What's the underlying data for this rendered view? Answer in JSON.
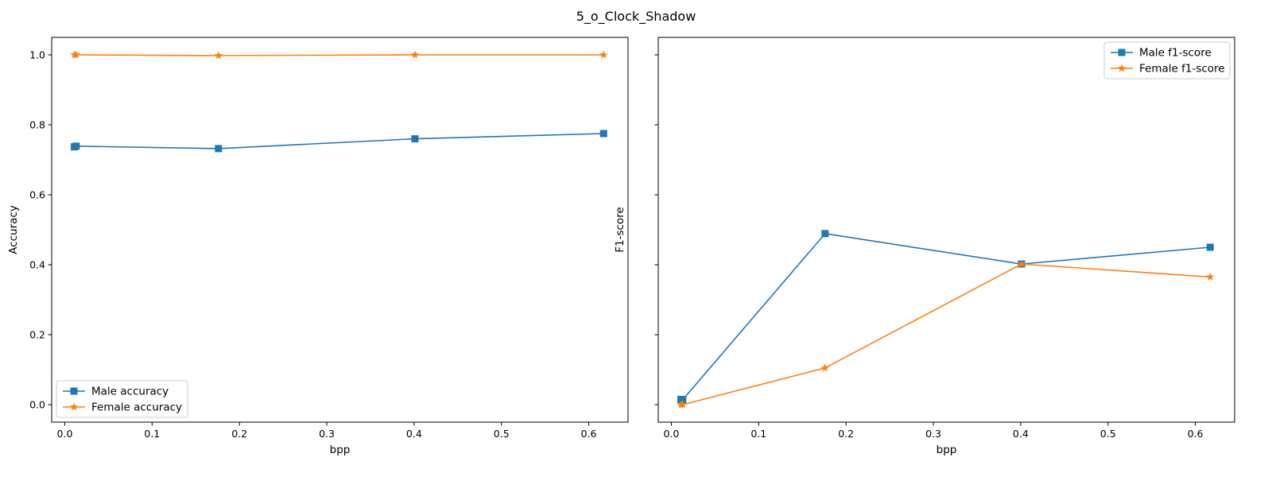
{
  "title": "5_o_Clock_Shadow",
  "chart_data": [
    {
      "type": "line",
      "xlabel": "bpp",
      "ylabel": "Accuracy",
      "xlim": [
        -0.015,
        0.645
      ],
      "ylim": [
        -0.05,
        1.05
      ],
      "xticks": [
        0.0,
        0.1,
        0.2,
        0.3,
        0.4,
        0.5,
        0.6
      ],
      "xtick_labels": [
        "0.0",
        "0.1",
        "0.2",
        "0.3",
        "0.4",
        "0.5",
        "0.6"
      ],
      "yticks": [
        0.0,
        0.2,
        0.4,
        0.6,
        0.8,
        1.0
      ],
      "ytick_labels": [
        "0.0",
        "0.2",
        "0.4",
        "0.6",
        "0.8",
        "1.0"
      ],
      "ytick_labels_visible": true,
      "legend_position": "lower-left",
      "series": [
        {
          "name": "Male accuracy",
          "color": "#1f77b4",
          "marker": "square",
          "x": [
            0.011,
            0.013,
            0.176,
            0.401,
            0.617
          ],
          "y": [
            0.737,
            0.739,
            0.732,
            0.76,
            0.775
          ]
        },
        {
          "name": "Female accuracy",
          "color": "#ff7f0e",
          "marker": "star",
          "x": [
            0.011,
            0.013,
            0.176,
            0.401,
            0.617
          ],
          "y": [
            1.0,
            1.0,
            0.998,
            1.0,
            1.0
          ]
        }
      ]
    },
    {
      "type": "line",
      "xlabel": "bpp",
      "ylabel": "F1-score",
      "xlim": [
        -0.015,
        0.645
      ],
      "ylim": [
        -0.05,
        1.05
      ],
      "xticks": [
        0.0,
        0.1,
        0.2,
        0.3,
        0.4,
        0.5,
        0.6
      ],
      "xtick_labels": [
        "0.0",
        "0.1",
        "0.2",
        "0.3",
        "0.4",
        "0.5",
        "0.6"
      ],
      "yticks": [
        0.0,
        0.2,
        0.4,
        0.6,
        0.8,
        1.0
      ],
      "ytick_labels": [],
      "ytick_labels_visible": false,
      "legend_position": "upper-right",
      "series": [
        {
          "name": "Male f1-score",
          "color": "#1f77b4",
          "marker": "square",
          "x": [
            0.011,
            0.013,
            0.176,
            0.401,
            0.617
          ],
          "y": [
            0.015,
            0.014,
            0.489,
            0.402,
            0.45
          ]
        },
        {
          "name": "Female f1-score",
          "color": "#ff7f0e",
          "marker": "star",
          "x": [
            0.011,
            0.013,
            0.176,
            0.401,
            0.617
          ],
          "y": [
            0.0,
            0.0,
            0.105,
            0.402,
            0.365
          ]
        }
      ]
    }
  ]
}
